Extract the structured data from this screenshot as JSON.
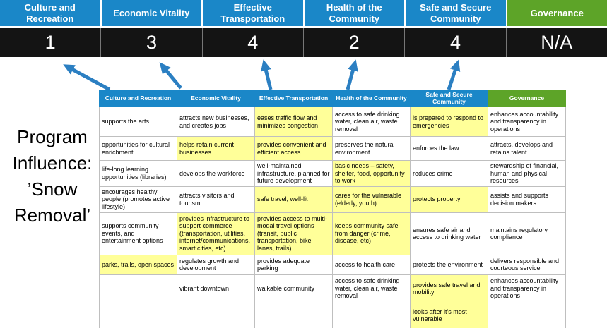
{
  "title": {
    "lines": [
      "Program",
      "Influence:",
      "’Snow",
      "Removal’"
    ]
  },
  "scoreboard": {
    "categories": [
      {
        "label": "Culture and Recreation",
        "score": "1",
        "theme": "blue"
      },
      {
        "label": "Economic Vitality",
        "score": "3",
        "theme": "blue"
      },
      {
        "label": "Effective Transportation",
        "score": "4",
        "theme": "blue"
      },
      {
        "label": "Health of the Community",
        "score": "2",
        "theme": "blue"
      },
      {
        "label": "Safe and Secure Community",
        "score": "4",
        "theme": "blue"
      },
      {
        "label": "Governance",
        "score": "N/A",
        "theme": "green"
      }
    ]
  },
  "matrix": {
    "headers": [
      {
        "label": "Culture and Recreation",
        "theme": "blue"
      },
      {
        "label": "Economic Vitality",
        "theme": "blue"
      },
      {
        "label": "Effective Transportation",
        "theme": "blue"
      },
      {
        "label": "Health of the Community",
        "theme": "blue"
      },
      {
        "label": "Safe and Secure Community",
        "theme": "blue"
      },
      {
        "label": "Governance",
        "theme": "green"
      }
    ],
    "rows": [
      [
        {
          "text": "supports the arts",
          "highlight": false
        },
        {
          "text": "attracts new businesses, and creates jobs",
          "highlight": false
        },
        {
          "text": "eases traffic flow and minimizes congestion",
          "highlight": true
        },
        {
          "text": "access to safe drinking water, clean air, waste removal",
          "highlight": false
        },
        {
          "text": "is prepared to respond to emergencies",
          "highlight": true
        },
        {
          "text": "enhances accountability and transparency in operations",
          "highlight": false
        }
      ],
      [
        {
          "text": "opportunities for cultural enrichment",
          "highlight": false
        },
        {
          "text": "helps retain current businesses",
          "highlight": true
        },
        {
          "text": "provides convenient and efficient access",
          "highlight": true
        },
        {
          "text": "preserves the natural environment",
          "highlight": false
        },
        {
          "text": "enforces the law",
          "highlight": false
        },
        {
          "text": "attracts, develops and retains talent",
          "highlight": false
        }
      ],
      [
        {
          "text": "life-long learning opportunities (libraries)",
          "highlight": false
        },
        {
          "text": "develops the workforce",
          "highlight": false
        },
        {
          "text": "well-maintained infrastructure, planned for future development",
          "highlight": false
        },
        {
          "text": "basic needs – safety, shelter, food, opportunity to work",
          "highlight": true
        },
        {
          "text": "reduces crime",
          "highlight": false
        },
        {
          "text": "stewardship of financial, human and physical resources",
          "highlight": false
        }
      ],
      [
        {
          "text": "encourages healthy people (promotes active lifestyle)",
          "highlight": false
        },
        {
          "text": "attracts visitors and tourism",
          "highlight": false
        },
        {
          "text": "safe travel, well-lit",
          "highlight": true
        },
        {
          "text": "cares for the vulnerable (elderly, youth)",
          "highlight": true
        },
        {
          "text": "protects property",
          "highlight": true
        },
        {
          "text": "assists and supports decision makers",
          "highlight": false
        }
      ],
      [
        {
          "text": "supports community events, and entertainment options",
          "highlight": false
        },
        {
          "text": "provides infrastructure to support commerce (transportation, utilities, internet/communications, smart cities, etc)",
          "highlight": true
        },
        {
          "text": "provides access to multi-modal travel options (transit, public transportation, bike lanes, trails)",
          "highlight": true
        },
        {
          "text": "keeps community safe from danger (crime, disease, etc)",
          "highlight": true
        },
        {
          "text": "ensures safe air and access to drinking water",
          "highlight": false
        },
        {
          "text": "maintains regulatory compliance",
          "highlight": false
        }
      ],
      [
        {
          "text": "parks, trails, open spaces",
          "highlight": true
        },
        {
          "text": "regulates growth and development",
          "highlight": false
        },
        {
          "text": "provides adequate parking",
          "highlight": false
        },
        {
          "text": "access to health care",
          "highlight": false
        },
        {
          "text": "protects the environment",
          "highlight": false
        },
        {
          "text": "delivers responsible and courteous service",
          "highlight": false
        }
      ],
      [
        {
          "text": "",
          "highlight": false
        },
        {
          "text": "vibrant downtown",
          "highlight": false
        },
        {
          "text": "walkable community",
          "highlight": false
        },
        {
          "text": "access to safe drinking water, clean air, waste removal",
          "highlight": false
        },
        {
          "text": "provides safe travel and mobility",
          "highlight": true
        },
        {
          "text": "enhances accountability and transparency in operations",
          "highlight": false
        }
      ],
      [
        {
          "text": "",
          "highlight": false
        },
        {
          "text": "",
          "highlight": false
        },
        {
          "text": "",
          "highlight": false
        },
        {
          "text": "",
          "highlight": false
        },
        {
          "text": "looks after it's most vulnerable",
          "highlight": true
        },
        {
          "text": "",
          "highlight": false
        }
      ]
    ]
  },
  "colors": {
    "blue": "#1a87c8",
    "green": "#5da428",
    "highlight": "#ffff99",
    "score_bg": "#141414",
    "arrow": "#2b7fc2"
  }
}
